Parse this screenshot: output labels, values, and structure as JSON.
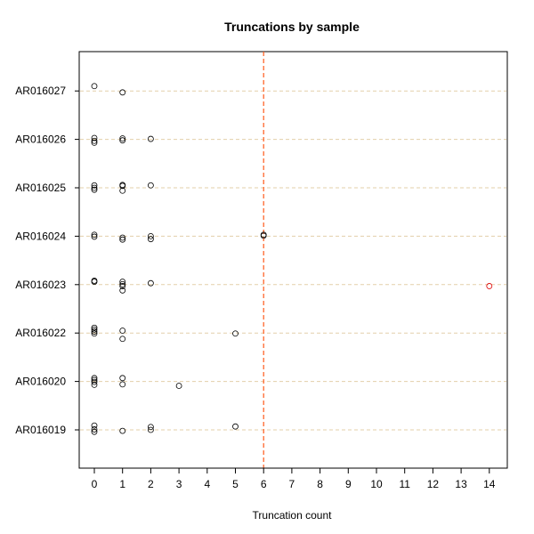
{
  "chart_data": {
    "type": "scatter",
    "title": "Truncations by sample",
    "xlabel": "Truncation count",
    "ylabel": "",
    "xlim": [
      -0.5,
      14.5
    ],
    "xticks": [
      0,
      1,
      2,
      3,
      4,
      5,
      6,
      7,
      8,
      9,
      10,
      11,
      12,
      13,
      14
    ],
    "categories": [
      "AR016019",
      "AR016020",
      "AR016022",
      "AR016023",
      "AR016024",
      "AR016025",
      "AR016026",
      "AR016027"
    ],
    "grid": "horizontal dashed",
    "reference_line": {
      "x": 6,
      "color": "#ff5a1a",
      "style": "dashed"
    },
    "point_color": "#000000",
    "highlight_color": "#dd0000",
    "points": [
      {
        "sample": "AR016027",
        "x": 0,
        "jitter": 0.1
      },
      {
        "sample": "AR016027",
        "x": 1,
        "jitter": -0.03
      },
      {
        "sample": "AR016026",
        "x": 0,
        "jitter": 0.03
      },
      {
        "sample": "AR016026",
        "x": 0,
        "jitter": -0.03
      },
      {
        "sample": "AR016026",
        "x": 0,
        "jitter": -0.07
      },
      {
        "sample": "AR016026",
        "x": 1,
        "jitter": 0.02
      },
      {
        "sample": "AR016026",
        "x": 1,
        "jitter": -0.02
      },
      {
        "sample": "AR016026",
        "x": 2,
        "jitter": 0.01
      },
      {
        "sample": "AR016025",
        "x": 0,
        "jitter": 0.05
      },
      {
        "sample": "AR016025",
        "x": 0,
        "jitter": 0.0
      },
      {
        "sample": "AR016025",
        "x": 0,
        "jitter": -0.04
      },
      {
        "sample": "AR016025",
        "x": 1,
        "jitter": 0.06
      },
      {
        "sample": "AR016025",
        "x": 1,
        "jitter": 0.04
      },
      {
        "sample": "AR016025",
        "x": 1,
        "jitter": -0.06
      },
      {
        "sample": "AR016025",
        "x": 2,
        "jitter": 0.05
      },
      {
        "sample": "AR016024",
        "x": 0,
        "jitter": 0.03
      },
      {
        "sample": "AR016024",
        "x": 0,
        "jitter": -0.01
      },
      {
        "sample": "AR016024",
        "x": 1,
        "jitter": -0.03
      },
      {
        "sample": "AR016024",
        "x": 1,
        "jitter": -0.07
      },
      {
        "sample": "AR016024",
        "x": 2,
        "jitter": 0.0
      },
      {
        "sample": "AR016024",
        "x": 2,
        "jitter": -0.06
      },
      {
        "sample": "AR016024",
        "x": 6,
        "jitter": 0.03
      },
      {
        "sample": "AR016024",
        "x": 6,
        "jitter": 0.01
      },
      {
        "sample": "AR016023",
        "x": 0,
        "jitter": 0.08
      },
      {
        "sample": "AR016023",
        "x": 0,
        "jitter": 0.06
      },
      {
        "sample": "AR016023",
        "x": 1,
        "jitter": 0.06
      },
      {
        "sample": "AR016023",
        "x": 1,
        "jitter": 0.01
      },
      {
        "sample": "AR016023",
        "x": 1,
        "jitter": -0.03
      },
      {
        "sample": "AR016023",
        "x": 1,
        "jitter": -0.12
      },
      {
        "sample": "AR016023",
        "x": 2,
        "jitter": 0.03
      },
      {
        "sample": "AR016023",
        "x": 14,
        "jitter": -0.03,
        "highlight": true
      },
      {
        "sample": "AR016022",
        "x": 0,
        "jitter": 0.11
      },
      {
        "sample": "AR016022",
        "x": 0,
        "jitter": 0.07
      },
      {
        "sample": "AR016022",
        "x": 0,
        "jitter": 0.03
      },
      {
        "sample": "AR016022",
        "x": 0,
        "jitter": -0.01
      },
      {
        "sample": "AR016022",
        "x": 1,
        "jitter": 0.05
      },
      {
        "sample": "AR016022",
        "x": 1,
        "jitter": -0.12
      },
      {
        "sample": "AR016022",
        "x": 5,
        "jitter": -0.01
      },
      {
        "sample": "AR016020",
        "x": 0,
        "jitter": 0.07
      },
      {
        "sample": "AR016020",
        "x": 0,
        "jitter": 0.03
      },
      {
        "sample": "AR016020",
        "x": 0,
        "jitter": -0.01
      },
      {
        "sample": "AR016020",
        "x": 0,
        "jitter": -0.07
      },
      {
        "sample": "AR016020",
        "x": 1,
        "jitter": 0.07
      },
      {
        "sample": "AR016020",
        "x": 1,
        "jitter": -0.06
      },
      {
        "sample": "AR016020",
        "x": 3,
        "jitter": -0.09
      },
      {
        "sample": "AR016019",
        "x": 0,
        "jitter": 0.09
      },
      {
        "sample": "AR016019",
        "x": 0,
        "jitter": 0.01
      },
      {
        "sample": "AR016019",
        "x": 0,
        "jitter": -0.04
      },
      {
        "sample": "AR016019",
        "x": 1,
        "jitter": -0.02
      },
      {
        "sample": "AR016019",
        "x": 2,
        "jitter": 0.06
      },
      {
        "sample": "AR016019",
        "x": 2,
        "jitter": 0.0
      },
      {
        "sample": "AR016019",
        "x": 5,
        "jitter": 0.07
      }
    ]
  }
}
